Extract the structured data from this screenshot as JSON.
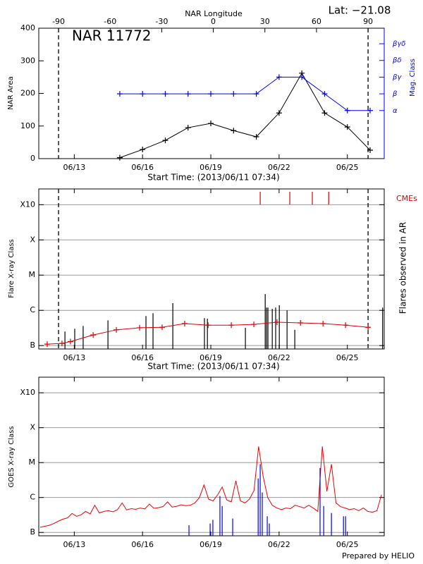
{
  "chart_data": [
    {
      "type": "line",
      "title": "NAR 11772",
      "subtitle": "Lat: −21.08",
      "x2label": "NAR Longitude",
      "xlabel": "Start Time: (2013/06/11 07:34)",
      "ylabel": "NAR Area",
      "y2label": "Mag. Class",
      "xlim": [
        11.44,
        26.62
      ],
      "xticks": [
        {
          "value": 13,
          "label": "06/13"
        },
        {
          "value": 16,
          "label": "06/16"
        },
        {
          "value": 19,
          "label": "06/19"
        },
        {
          "value": 22,
          "label": "06/22"
        },
        {
          "value": 25,
          "label": "06/25"
        }
      ],
      "x2lim": [
        -101.5,
        99.4
      ],
      "x2ticks": [
        -90,
        -60,
        -30,
        0,
        30,
        60,
        90
      ],
      "ylim": [
        0,
        400
      ],
      "yticks": [
        0,
        100,
        200,
        300,
        400
      ],
      "y2lim": [
        -1.88,
        5.93
      ],
      "y2ticks": [
        {
          "value": 1,
          "label": "α"
        },
        {
          "value": 2,
          "label": "β"
        },
        {
          "value": 3,
          "label": "βγ"
        },
        {
          "value": 4,
          "label": "βδ"
        },
        {
          "value": 5,
          "label": "βγδ"
        }
      ],
      "x": [
        15,
        16,
        17,
        18,
        19,
        20,
        21,
        22,
        23,
        24,
        25,
        26
      ],
      "series": [
        {
          "color": "#000000",
          "values": [
            3,
            28,
            56,
            95,
            108,
            86,
            67,
            140,
            262,
            140,
            97,
            26
          ]
        },
        {
          "color": "#0000ff",
          "axis": "y2",
          "values": [
            2,
            2,
            2,
            2,
            2,
            2,
            2,
            3,
            3,
            2,
            1,
            1
          ]
        }
      ]
    },
    {
      "type": "event",
      "xlabel": "Start Time: (2013/06/11 07:34)",
      "ylabel": "Flare X-ray Class",
      "y2label": "Flares observed in AR",
      "log_y": true,
      "grid": true,
      "xlim": [
        11.44,
        26.62
      ],
      "xticks": [
        {
          "value": 13,
          "label": "06/13"
        },
        {
          "value": 16,
          "label": "06/16"
        },
        {
          "value": 19,
          "label": "06/19"
        },
        {
          "value": 22,
          "label": "06/22"
        },
        {
          "value": 25,
          "label": "06/25"
        }
      ],
      "ylim": [
        8e-08,
        0.0028
      ],
      "yticks": [
        {
          "value": 1e-07,
          "label": "B"
        },
        {
          "value": 1e-06,
          "label": "C"
        },
        {
          "value": 1e-05,
          "label": "M"
        },
        {
          "value": 0.0001,
          "label": "X"
        },
        {
          "value": 0.001,
          "label": "X10"
        }
      ],
      "series": [
        {
          "color": "#000000",
          "style": "stem",
          "x": [
            12.59,
            13.02,
            13.39,
            14.48,
            16.15,
            16.46,
            17.33,
            18.72,
            18.85,
            20.52,
            21.39,
            21.45,
            21.51,
            21.7,
            21.85,
            22.01,
            22.35,
            22.69,
            26.55
          ],
          "values": [
            2.5e-07,
            3e-07,
            3.6e-07,
            5.2e-07,
            6.9e-07,
            8.3e-07,
            1.6e-06,
            6e-07,
            5.8e-07,
            3.2e-07,
            2.9e-06,
            1.2e-06,
            1.2e-06,
            1.1e-06,
            1.2e-06,
            1.4e-06,
            1e-06,
            2.8e-07,
            1.2e-06
          ]
        },
        {
          "color": "#dd0000",
          "style": "marker-line",
          "x": [
            11.81,
            12.46,
            12.83,
            13.83,
            14.85,
            15.87,
            16.86,
            17.85,
            18.88,
            19.9,
            20.89,
            21.91,
            22.94,
            23.93,
            24.92,
            25.91
          ],
          "values": [
            1.1e-07,
            1.15e-07,
            1.3e-07,
            2e-07,
            2.8e-07,
            3.2e-07,
            3.3e-07,
            4.2e-07,
            3.8e-07,
            3.8e-07,
            4e-07,
            4.6e-07,
            4.4e-07,
            4.2e-07,
            3.8e-07,
            3.3e-07
          ]
        },
        {
          "name": "CMEs",
          "color": "#dd0000",
          "style": "event-tick",
          "x": [
            21.17,
            22.47,
            23.46,
            24.18
          ]
        }
      ]
    },
    {
      "type": "timeseries",
      "ylabel": "GOES X-ray Class",
      "footer": "Prepared by HELIO",
      "log_y": true,
      "grid": true,
      "xlim": [
        11.44,
        26.62
      ],
      "xticks": [
        {
          "value": 13,
          "label": "06/13"
        },
        {
          "value": 16,
          "label": "06/16"
        },
        {
          "value": 19,
          "label": "06/19"
        },
        {
          "value": 22,
          "label": "06/22"
        },
        {
          "value": 25,
          "label": "06/25"
        }
      ],
      "ylim": [
        8e-08,
        0.0028
      ],
      "yticks": [
        {
          "value": 1e-07,
          "label": "B"
        },
        {
          "value": 1e-06,
          "label": "C"
        },
        {
          "value": 1e-05,
          "label": "M"
        },
        {
          "value": 0.0001,
          "label": "X"
        },
        {
          "value": 0.001,
          "label": "X10"
        }
      ],
      "series": [
        {
          "color": "#ee0000",
          "style": "line",
          "x": [
            11.5,
            11.7,
            11.9,
            12.1,
            12.3,
            12.5,
            12.7,
            12.9,
            13.1,
            13.3,
            13.5,
            13.7,
            13.9,
            14.1,
            14.3,
            14.5,
            14.7,
            14.9,
            15.1,
            15.3,
            15.5,
            15.7,
            15.9,
            16.1,
            16.3,
            16.5,
            16.7,
            16.9,
            17.1,
            17.3,
            17.5,
            17.7,
            17.9,
            18.1,
            18.3,
            18.5,
            18.7,
            18.9,
            19.1,
            19.3,
            19.5,
            19.7,
            19.9,
            20.1,
            20.3,
            20.5,
            20.7,
            20.9,
            21.1,
            21.3,
            21.5,
            21.7,
            21.9,
            22.1,
            22.3,
            22.5,
            22.7,
            22.9,
            23.1,
            23.3,
            23.5,
            23.7,
            23.9,
            24.1,
            24.3,
            24.5,
            24.7,
            24.9,
            25.1,
            25.3,
            25.5,
            25.7,
            25.9,
            26.1,
            26.3,
            26.5
          ],
          "values": [
            1.4e-07,
            1.5e-07,
            1.6e-07,
            1.8e-07,
            2.1e-07,
            2.4e-07,
            2.6e-07,
            3.5e-07,
            2.9e-07,
            3.2e-07,
            4e-07,
            3.4e-07,
            6e-07,
            3.6e-07,
            4e-07,
            4.2e-07,
            3.9e-07,
            4.5e-07,
            7e-07,
            4.4e-07,
            4.8e-07,
            4.6e-07,
            5e-07,
            4.7e-07,
            6.5e-07,
            4.9e-07,
            5.1e-07,
            5.5e-07,
            7.5e-07,
            5.3e-07,
            5.6e-07,
            6.2e-07,
            5.8e-07,
            6e-07,
            7e-07,
            1e-06,
            2.3e-06,
            9e-07,
            8e-07,
            1.2e-06,
            2e-06,
            8.5e-07,
            7.5e-07,
            3e-06,
            8e-07,
            7e-07,
            9e-07,
            1.6e-06,
            2.9e-05,
            4e-06,
            1e-06,
            6e-07,
            5e-07,
            4.5e-07,
            5e-07,
            4.8e-07,
            6e-07,
            5.5e-07,
            5e-07,
            6e-07,
            5e-07,
            4e-07,
            2.9e-05,
            1.5e-06,
            9e-06,
            7e-07,
            5.5e-07,
            5e-07,
            4.5e-07,
            4.8e-07,
            4.2e-07,
            5e-07,
            4e-07,
            3.8e-07,
            4.2e-07,
            1.2e-06
          ]
        },
        {
          "color": "#0000ff",
          "style": "stem",
          "x": [
            18.04,
            18.97,
            19.09,
            19.4,
            19.5,
            19.96,
            21.08,
            21.17,
            21.26,
            21.48,
            21.57,
            23.8,
            23.96,
            24.3,
            24.83,
            24.92
          ],
          "values": [
            1.6e-07,
            1.8e-07,
            2.3e-07,
            1.1e-06,
            5.7e-07,
            2.5e-07,
            3.5e-06,
            9e-06,
            1.4e-06,
            2.9e-07,
            1.8e-07,
            7e-06,
            5.7e-07,
            3.6e-07,
            2.9e-07,
            2.9e-07
          ]
        }
      ]
    }
  ]
}
